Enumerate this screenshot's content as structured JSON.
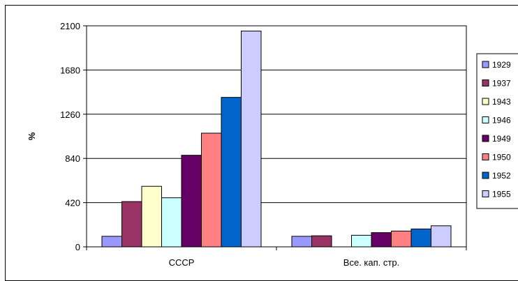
{
  "chart_data": {
    "type": "bar",
    "title": "",
    "xlabel": "",
    "ylabel": "%",
    "ylim": [
      0,
      2100
    ],
    "yticks": [
      0,
      420,
      840,
      1260,
      1680,
      2100
    ],
    "categories": [
      "СССР",
      "Все. кап. стр."
    ],
    "series": [
      {
        "name": "1929",
        "color": "#9999ff",
        "values": [
          100,
          100
        ]
      },
      {
        "name": "1937",
        "color": "#993366",
        "values": [
          430,
          105
        ]
      },
      {
        "name": "1943",
        "color": "#ffffcc",
        "values": [
          575,
          null
        ]
      },
      {
        "name": "1946",
        "color": "#ccffff",
        "values": [
          466,
          110
        ]
      },
      {
        "name": "1949",
        "color": "#660066",
        "values": [
          870,
          135
        ]
      },
      {
        "name": "1950",
        "color": "#ff8080",
        "values": [
          1080,
          150
        ]
      },
      {
        "name": "1952",
        "color": "#0066cc",
        "values": [
          1420,
          170
        ]
      },
      {
        "name": "1955",
        "color": "#ccccff",
        "values": [
          2050,
          200
        ]
      }
    ],
    "grid": true,
    "legend_position": "right"
  }
}
